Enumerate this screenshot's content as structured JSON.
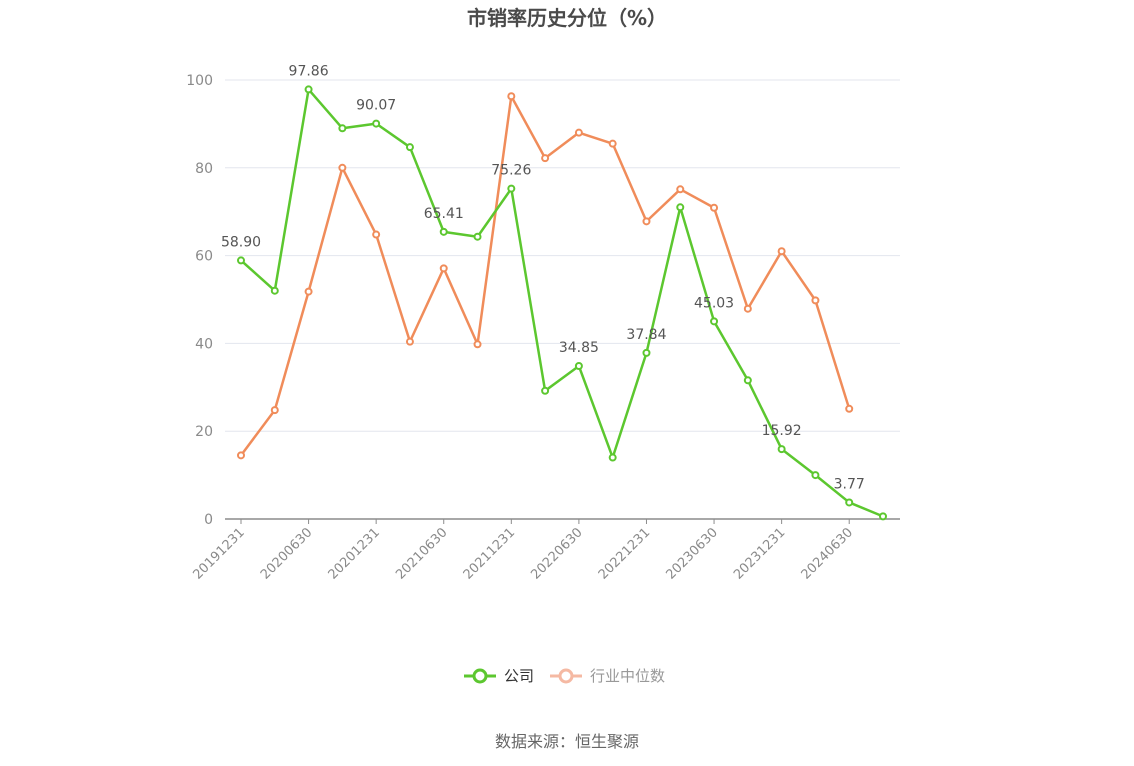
{
  "chart_data": {
    "type": "line",
    "title": "市销率历史分位（%）",
    "xlabel": "",
    "ylabel": "",
    "ylim": [
      0,
      100
    ],
    "yticks": [
      0,
      20,
      40,
      60,
      80,
      100
    ],
    "x": [
      "20191231",
      "20200331",
      "20200630",
      "20200930",
      "20201231",
      "20210331",
      "20210630",
      "20210930",
      "20211231",
      "20220331",
      "20220630",
      "20220930",
      "20221231",
      "20230331",
      "20230630",
      "20230930",
      "20231231",
      "20240331",
      "20240630",
      "20240930"
    ],
    "xtick_labels": [
      "20191231",
      "20200630",
      "20201231",
      "20210630",
      "20211231",
      "20220630",
      "20221231",
      "20230630",
      "20231231",
      "20240630"
    ],
    "series": [
      {
        "name": "公司",
        "color": "#5cc72f",
        "values": [
          58.9,
          52.0,
          97.86,
          89.0,
          90.07,
          84.7,
          65.41,
          64.3,
          75.26,
          29.2,
          34.85,
          14.0,
          37.84,
          71.0,
          45.03,
          31.6,
          15.92,
          10.0,
          3.77,
          0.6
        ],
        "labels": {
          "0": "58.90",
          "2": "97.86",
          "4": "90.07",
          "6": "65.41",
          "8": "75.26",
          "10": "34.85",
          "12": "37.84",
          "14": "45.03",
          "16": "15.92",
          "18": "3.77"
        }
      },
      {
        "name": "行业中位数",
        "color": "#f08c5a",
        "values": [
          14.5,
          24.8,
          51.8,
          80.0,
          64.8,
          40.4,
          57.1,
          39.8,
          96.3,
          82.2,
          88.0,
          85.5,
          67.8,
          75.1,
          70.9,
          47.9,
          61.0,
          49.8,
          25.1,
          null
        ]
      }
    ],
    "legend": {
      "placement": "bottom-center",
      "items": [
        {
          "label": "公司",
          "color": "#5cc72f",
          "active": true
        },
        {
          "label": "行业中位数",
          "color": "#f5b9a3",
          "active": false
        }
      ]
    },
    "grid": true
  },
  "footer": {
    "source": "数据来源：恒生聚源"
  }
}
